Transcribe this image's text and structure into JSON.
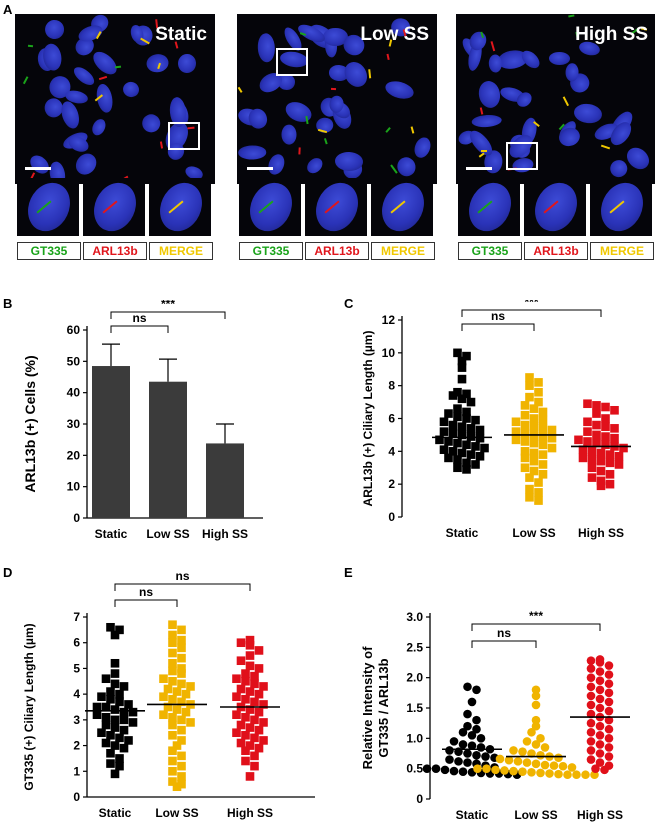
{
  "panel_letters": {
    "a": "A",
    "b": "B",
    "c": "C",
    "d": "D",
    "e": "E"
  },
  "panel_a": {
    "conditions": [
      "Static",
      "Low SS",
      "High SS"
    ],
    "channel_labels": [
      "GT335",
      "ARL13b",
      "MERGE"
    ],
    "channel_colors": [
      "#1aa31a",
      "#e0161c",
      "#f0c800"
    ]
  },
  "colors": {
    "static": "#000000",
    "low": "#f0b400",
    "high": "#e0101a",
    "bar": "#3b3b3b"
  },
  "chart_data": [
    {
      "type": "bar",
      "title": "",
      "xlabel": "",
      "ylabel": "ARL13b (+) Cells (%)",
      "categories": [
        "Static",
        "Low SS",
        "High SS"
      ],
      "values": [
        48.5,
        43.5,
        23.8
      ],
      "errors": [
        7,
        7.2,
        6.2
      ],
      "ylim": [
        0,
        60
      ],
      "yticks": [
        "0",
        "10",
        "20",
        "30",
        "40",
        "50",
        "60"
      ],
      "annotations": [
        {
          "between": [
            "Static",
            "Low SS"
          ],
          "label": "ns"
        },
        {
          "between": [
            "Static",
            "High SS"
          ],
          "label": "***"
        }
      ]
    },
    {
      "type": "scatter",
      "title": "",
      "ylabel": "ARL13b (+) Ciliary Length (µm)",
      "categories": [
        "Static",
        "Low SS",
        "High SS"
      ],
      "means": [
        4.85,
        5.0,
        4.3
      ],
      "ylim": [
        0,
        12
      ],
      "yticks": [
        "0",
        "2",
        "4",
        "6",
        "8",
        "10",
        "12"
      ],
      "series": [
        {
          "name": "Static",
          "values": [
            10.0,
            9.8,
            9.5,
            9.1,
            8.4,
            7.6,
            7.5,
            7.4,
            7.2,
            7.0,
            6.6,
            6.4,
            6.3,
            6.1,
            6.0,
            5.9,
            5.8,
            5.6,
            5.5,
            5.4,
            5.3,
            5.2,
            5.1,
            5.0,
            4.9,
            4.8,
            4.7,
            4.6,
            4.5,
            4.4,
            4.3,
            4.2,
            4.1,
            4.0,
            3.9,
            3.8,
            3.7,
            3.6,
            3.5,
            3.3,
            3.2,
            3.0,
            2.9
          ]
        },
        {
          "name": "Low SS",
          "values": [
            8.5,
            8.2,
            8.0,
            7.6,
            7.3,
            7.0,
            6.8,
            6.6,
            6.4,
            6.2,
            6.0,
            5.9,
            5.8,
            5.6,
            5.5,
            5.4,
            5.3,
            5.2,
            5.1,
            5.0,
            4.9,
            4.8,
            4.7,
            4.6,
            4.5,
            4.4,
            4.2,
            4.0,
            3.9,
            3.8,
            3.6,
            3.4,
            3.2,
            3.0,
            2.8,
            2.6,
            2.4,
            2.1,
            1.7,
            1.5,
            1.2,
            1.0
          ]
        },
        {
          "name": "High SS",
          "values": [
            6.9,
            6.8,
            6.7,
            6.5,
            6.3,
            6.0,
            5.8,
            5.6,
            5.5,
            5.4,
            5.2,
            5.0,
            4.9,
            4.8,
            4.7,
            4.6,
            4.5,
            4.4,
            4.3,
            4.2,
            4.1,
            4.0,
            3.9,
            3.8,
            3.7,
            3.6,
            3.5,
            3.4,
            3.3,
            3.2,
            3.0,
            2.8,
            2.6,
            2.4,
            2.2,
            2.0,
            1.9
          ]
        }
      ],
      "annotations": [
        {
          "between": [
            "Static",
            "Low SS"
          ],
          "label": "ns"
        },
        {
          "between": [
            "Static",
            "High SS"
          ],
          "label": "***"
        }
      ]
    },
    {
      "type": "scatter",
      "title": "",
      "ylabel": "GT335 (+) Ciliary Length (µm)",
      "categories": [
        "Static",
        "Low SS",
        "High SS"
      ],
      "means": [
        3.35,
        3.6,
        3.5
      ],
      "ylim": [
        0,
        7
      ],
      "yticks": [
        "0",
        "1",
        "2",
        "3",
        "4",
        "5",
        "6",
        "7"
      ],
      "series": [
        {
          "name": "Static",
          "values": [
            6.6,
            6.5,
            6.3,
            5.2,
            4.8,
            4.6,
            4.4,
            4.3,
            4.1,
            4.0,
            3.9,
            3.8,
            3.7,
            3.6,
            3.5,
            3.5,
            3.4,
            3.3,
            3.3,
            3.2,
            3.1,
            3.0,
            3.0,
            2.9,
            2.8,
            2.7,
            2.6,
            2.5,
            2.4,
            2.3,
            2.2,
            2.1,
            2.0,
            1.9,
            1.7,
            1.5,
            1.3,
            1.2,
            0.9
          ]
        },
        {
          "name": "Low SS",
          "values": [
            6.7,
            6.5,
            6.3,
            6.1,
            6.0,
            5.8,
            5.6,
            5.4,
            5.2,
            5.0,
            4.9,
            4.8,
            4.6,
            4.5,
            4.4,
            4.3,
            4.2,
            4.1,
            4.0,
            3.9,
            3.8,
            3.7,
            3.6,
            3.5,
            3.4,
            3.3,
            3.2,
            3.1,
            3.0,
            2.9,
            2.8,
            2.6,
            2.4,
            2.2,
            2.0,
            1.8,
            1.6,
            1.4,
            1.2,
            1.0,
            0.8,
            0.6,
            0.5,
            0.4
          ]
        },
        {
          "name": "High SS",
          "values": [
            6.1,
            6.0,
            5.9,
            5.7,
            5.5,
            5.3,
            5.1,
            5.0,
            4.8,
            4.7,
            4.6,
            4.5,
            4.4,
            4.3,
            4.2,
            4.1,
            4.0,
            3.9,
            3.8,
            3.7,
            3.6,
            3.5,
            3.4,
            3.3,
            3.2,
            3.1,
            3.0,
            2.9,
            2.8,
            2.7,
            2.6,
            2.5,
            2.4,
            2.3,
            2.2,
            2.1,
            2.0,
            1.9,
            1.8,
            1.6,
            1.4,
            1.2,
            0.8
          ]
        }
      ],
      "annotations": [
        {
          "between": [
            "Static",
            "Low SS"
          ],
          "label": "ns"
        },
        {
          "between": [
            "Static",
            "High SS"
          ],
          "label": "ns"
        }
      ]
    },
    {
      "type": "scatter",
      "title": "",
      "ylabel": "Relative Intensity of GT335 / ARL13b",
      "ylabel_lines": [
        "Relative Intensity of",
        "GT335 / ARL13b"
      ],
      "categories": [
        "Static",
        "Low SS",
        "High SS"
      ],
      "means": [
        0.82,
        0.7,
        1.35
      ],
      "ylim": [
        0,
        3.0
      ],
      "yticks": [
        "0",
        "0.5",
        "1.0",
        "1.5",
        "2.0",
        "2.5",
        "3.0"
      ],
      "series": [
        {
          "name": "Static",
          "values": [
            1.85,
            1.8,
            1.6,
            1.4,
            1.3,
            1.2,
            1.15,
            1.1,
            1.05,
            1.0,
            0.95,
            0.9,
            0.88,
            0.85,
            0.82,
            0.8,
            0.78,
            0.75,
            0.72,
            0.7,
            0.68,
            0.65,
            0.62,
            0.6,
            0.58,
            0.55,
            0.52,
            0.5,
            0.5,
            0.48,
            0.46,
            0.45,
            0.44,
            0.43,
            0.42,
            0.42,
            0.41,
            0.4
          ]
        },
        {
          "name": "Low SS",
          "values": [
            1.8,
            1.7,
            1.55,
            1.3,
            1.2,
            1.1,
            1.0,
            0.95,
            0.9,
            0.85,
            0.8,
            0.78,
            0.75,
            0.72,
            0.7,
            0.68,
            0.66,
            0.64,
            0.62,
            0.6,
            0.58,
            0.56,
            0.55,
            0.54,
            0.52,
            0.5,
            0.5,
            0.48,
            0.47,
            0.46,
            0.45,
            0.44,
            0.43,
            0.42,
            0.41,
            0.4,
            0.4,
            0.4,
            0.4
          ]
        },
        {
          "name": "High SS",
          "values": [
            2.3,
            2.28,
            2.25,
            2.2,
            2.15,
            2.1,
            2.05,
            2.0,
            1.95,
            1.9,
            1.85,
            1.8,
            1.75,
            1.7,
            1.65,
            1.6,
            1.55,
            1.5,
            1.45,
            1.4,
            1.35,
            1.3,
            1.25,
            1.2,
            1.15,
            1.1,
            1.05,
            1.0,
            0.95,
            0.9,
            0.85,
            0.8,
            0.75,
            0.7,
            0.65,
            0.6,
            0.55,
            0.5,
            0.48
          ]
        }
      ],
      "annotations": [
        {
          "between": [
            "Static",
            "Low SS"
          ],
          "label": "ns"
        },
        {
          "between": [
            "Static",
            "High SS"
          ],
          "label": "***"
        }
      ]
    }
  ]
}
